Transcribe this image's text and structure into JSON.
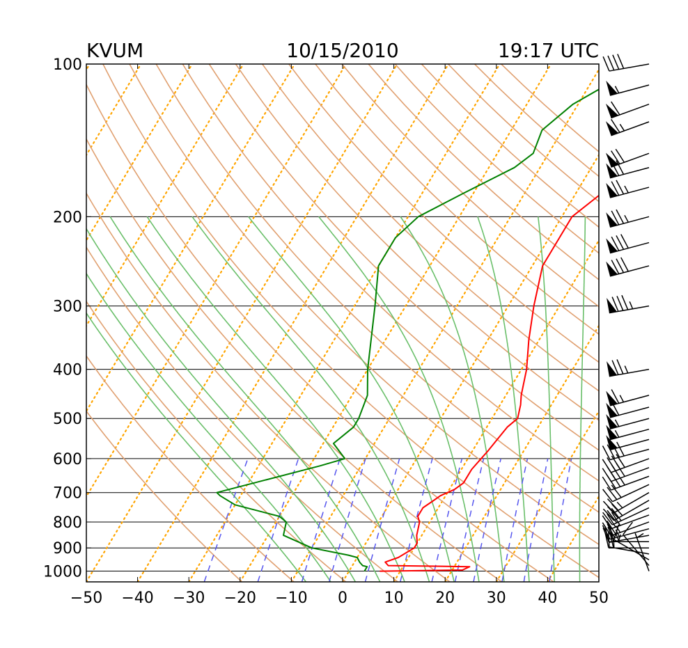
{
  "header": {
    "station": "KVUM",
    "date": "10/15/2010",
    "time": "19:17 UTC"
  },
  "chart_data": {
    "type": "line",
    "title": "",
    "xlabel": "",
    "ylabel": "",
    "x_axis": {
      "quantity": "temperature",
      "unit": "°C",
      "range": [
        -50,
        50
      ],
      "ticks": [
        -50,
        -40,
        -30,
        -20,
        -10,
        0,
        10,
        20,
        30,
        40,
        50
      ],
      "skewed": true
    },
    "y_axis": {
      "quantity": "pressure",
      "unit": "hPa",
      "scale": "log",
      "inverted": true,
      "range": [
        1050,
        100
      ],
      "ticks": [
        100,
        200,
        300,
        400,
        500,
        600,
        700,
        800,
        900,
        1000
      ]
    },
    "grid": true,
    "colors": {
      "temperature": "#ff0000",
      "dewpoint": "#008000",
      "dry_adiabat": "#e0a070",
      "moist_adiabat": "#6abf6a",
      "mixing_ratio": "#5555ee",
      "isotherm": "#ffa500"
    },
    "series": [
      {
        "key": "temperature",
        "points": [
          [
            1000,
            6
          ],
          [
            995,
            22
          ],
          [
            980,
            23
          ],
          [
            975,
            7
          ],
          [
            960,
            6
          ],
          [
            940,
            8
          ],
          [
            900,
            10
          ],
          [
            880,
            10
          ],
          [
            850,
            9
          ],
          [
            800,
            8
          ],
          [
            780,
            7
          ],
          [
            750,
            7
          ],
          [
            730,
            8
          ],
          [
            710,
            9
          ],
          [
            690,
            11
          ],
          [
            670,
            12
          ],
          [
            630,
            12
          ],
          [
            580,
            13
          ],
          [
            520,
            14
          ],
          [
            500,
            15
          ],
          [
            470,
            14
          ],
          [
            450,
            13
          ],
          [
            400,
            11
          ],
          [
            350,
            8
          ],
          [
            300,
            5
          ],
          [
            250,
            2
          ],
          [
            220,
            2
          ],
          [
            200,
            2
          ],
          [
            180,
            5
          ],
          [
            160,
            12
          ],
          [
            150,
            10
          ],
          [
            140,
            10
          ],
          [
            130,
            14
          ],
          [
            120,
            15
          ],
          [
            110,
            25
          ],
          [
            100,
            30
          ]
        ]
      },
      {
        "key": "dewpoint",
        "points": [
          [
            1000,
            3
          ],
          [
            995,
            3
          ],
          [
            980,
            3
          ],
          [
            975,
            2
          ],
          [
            960,
            1
          ],
          [
            940,
            0
          ],
          [
            930,
            -2
          ],
          [
            900,
            -10
          ],
          [
            850,
            -17
          ],
          [
            800,
            -18
          ],
          [
            780,
            -20
          ],
          [
            740,
            -30
          ],
          [
            710,
            -34
          ],
          [
            700,
            -35
          ],
          [
            690,
            -33
          ],
          [
            620,
            -18
          ],
          [
            600,
            -14
          ],
          [
            560,
            -18
          ],
          [
            520,
            -16
          ],
          [
            500,
            -16
          ],
          [
            450,
            -17
          ],
          [
            400,
            -20
          ],
          [
            300,
            -26
          ],
          [
            250,
            -30
          ],
          [
            220,
            -30
          ],
          [
            200,
            -28
          ],
          [
            180,
            -22
          ],
          [
            160,
            -15
          ],
          [
            150,
            -13
          ],
          [
            135,
            -14
          ],
          [
            120,
            -11
          ],
          [
            100,
            -2
          ]
        ]
      }
    ],
    "reference_lines": {
      "dry_adiabats_K": [
        250,
        260,
        270,
        280,
        290,
        300,
        310,
        320,
        330,
        340,
        350,
        360,
        370,
        380,
        390,
        400,
        410,
        420,
        430,
        440,
        450,
        460,
        470
      ],
      "moist_adiabats_C": [
        -10,
        -5,
        0,
        5,
        10,
        15,
        20,
        25,
        30,
        35,
        40,
        45
      ],
      "mixing_ratios_g_per_kg": [
        0.4,
        1,
        2,
        3,
        5,
        8,
        12,
        16,
        20,
        28,
        36,
        48
      ],
      "isotherms_C": [
        -130,
        -120,
        -110,
        -100,
        -90,
        -80,
        -70,
        -60,
        -50,
        -40,
        -30,
        -20,
        -10,
        0,
        10,
        20,
        30,
        40
      ]
    },
    "wind_barbs": [
      {
        "p": 1000,
        "speed_kt": 5,
        "dir_deg": 340
      },
      {
        "p": 975,
        "speed_kt": 10,
        "dir_deg": 320
      },
      {
        "p": 950,
        "speed_kt": 15,
        "dir_deg": 300
      },
      {
        "p": 925,
        "speed_kt": 15,
        "dir_deg": 280
      },
      {
        "p": 900,
        "speed_kt": 20,
        "dir_deg": 270
      },
      {
        "p": 875,
        "speed_kt": 20,
        "dir_deg": 270
      },
      {
        "p": 850,
        "speed_kt": 25,
        "dir_deg": 260
      },
      {
        "p": 825,
        "speed_kt": 25,
        "dir_deg": 255
      },
      {
        "p": 800,
        "speed_kt": 25,
        "dir_deg": 250
      },
      {
        "p": 775,
        "speed_kt": 30,
        "dir_deg": 250
      },
      {
        "p": 750,
        "speed_kt": 30,
        "dir_deg": 245
      },
      {
        "p": 725,
        "speed_kt": 30,
        "dir_deg": 240
      },
      {
        "p": 700,
        "speed_kt": 25,
        "dir_deg": 240
      },
      {
        "p": 675,
        "speed_kt": 30,
        "dir_deg": 245
      },
      {
        "p": 650,
        "speed_kt": 35,
        "dir_deg": 250
      },
      {
        "p": 625,
        "speed_kt": 40,
        "dir_deg": 250
      },
      {
        "p": 600,
        "speed_kt": 40,
        "dir_deg": 250
      },
      {
        "p": 575,
        "speed_kt": 40,
        "dir_deg": 255
      },
      {
        "p": 550,
        "speed_kt": 50,
        "dir_deg": 255
      },
      {
        "p": 525,
        "speed_kt": 55,
        "dir_deg": 255
      },
      {
        "p": 500,
        "speed_kt": 55,
        "dir_deg": 255
      },
      {
        "p": 475,
        "speed_kt": 60,
        "dir_deg": 255
      },
      {
        "p": 450,
        "speed_kt": 65,
        "dir_deg": 255
      },
      {
        "p": 400,
        "speed_kt": 75,
        "dir_deg": 260
      },
      {
        "p": 300,
        "speed_kt": 85,
        "dir_deg": 260
      },
      {
        "p": 250,
        "speed_kt": 80,
        "dir_deg": 255
      },
      {
        "p": 225,
        "speed_kt": 80,
        "dir_deg": 255
      },
      {
        "p": 200,
        "speed_kt": 75,
        "dir_deg": 255
      },
      {
        "p": 175,
        "speed_kt": 75,
        "dir_deg": 255
      },
      {
        "p": 160,
        "speed_kt": 70,
        "dir_deg": 255
      },
      {
        "p": 150,
        "speed_kt": 70,
        "dir_deg": 250
      },
      {
        "p": 130,
        "speed_kt": 65,
        "dir_deg": 250
      },
      {
        "p": 120,
        "speed_kt": 60,
        "dir_deg": 250
      },
      {
        "p": 110,
        "speed_kt": 55,
        "dir_deg": 255
      },
      {
        "p": 100,
        "speed_kt": 40,
        "dir_deg": 260
      }
    ]
  }
}
